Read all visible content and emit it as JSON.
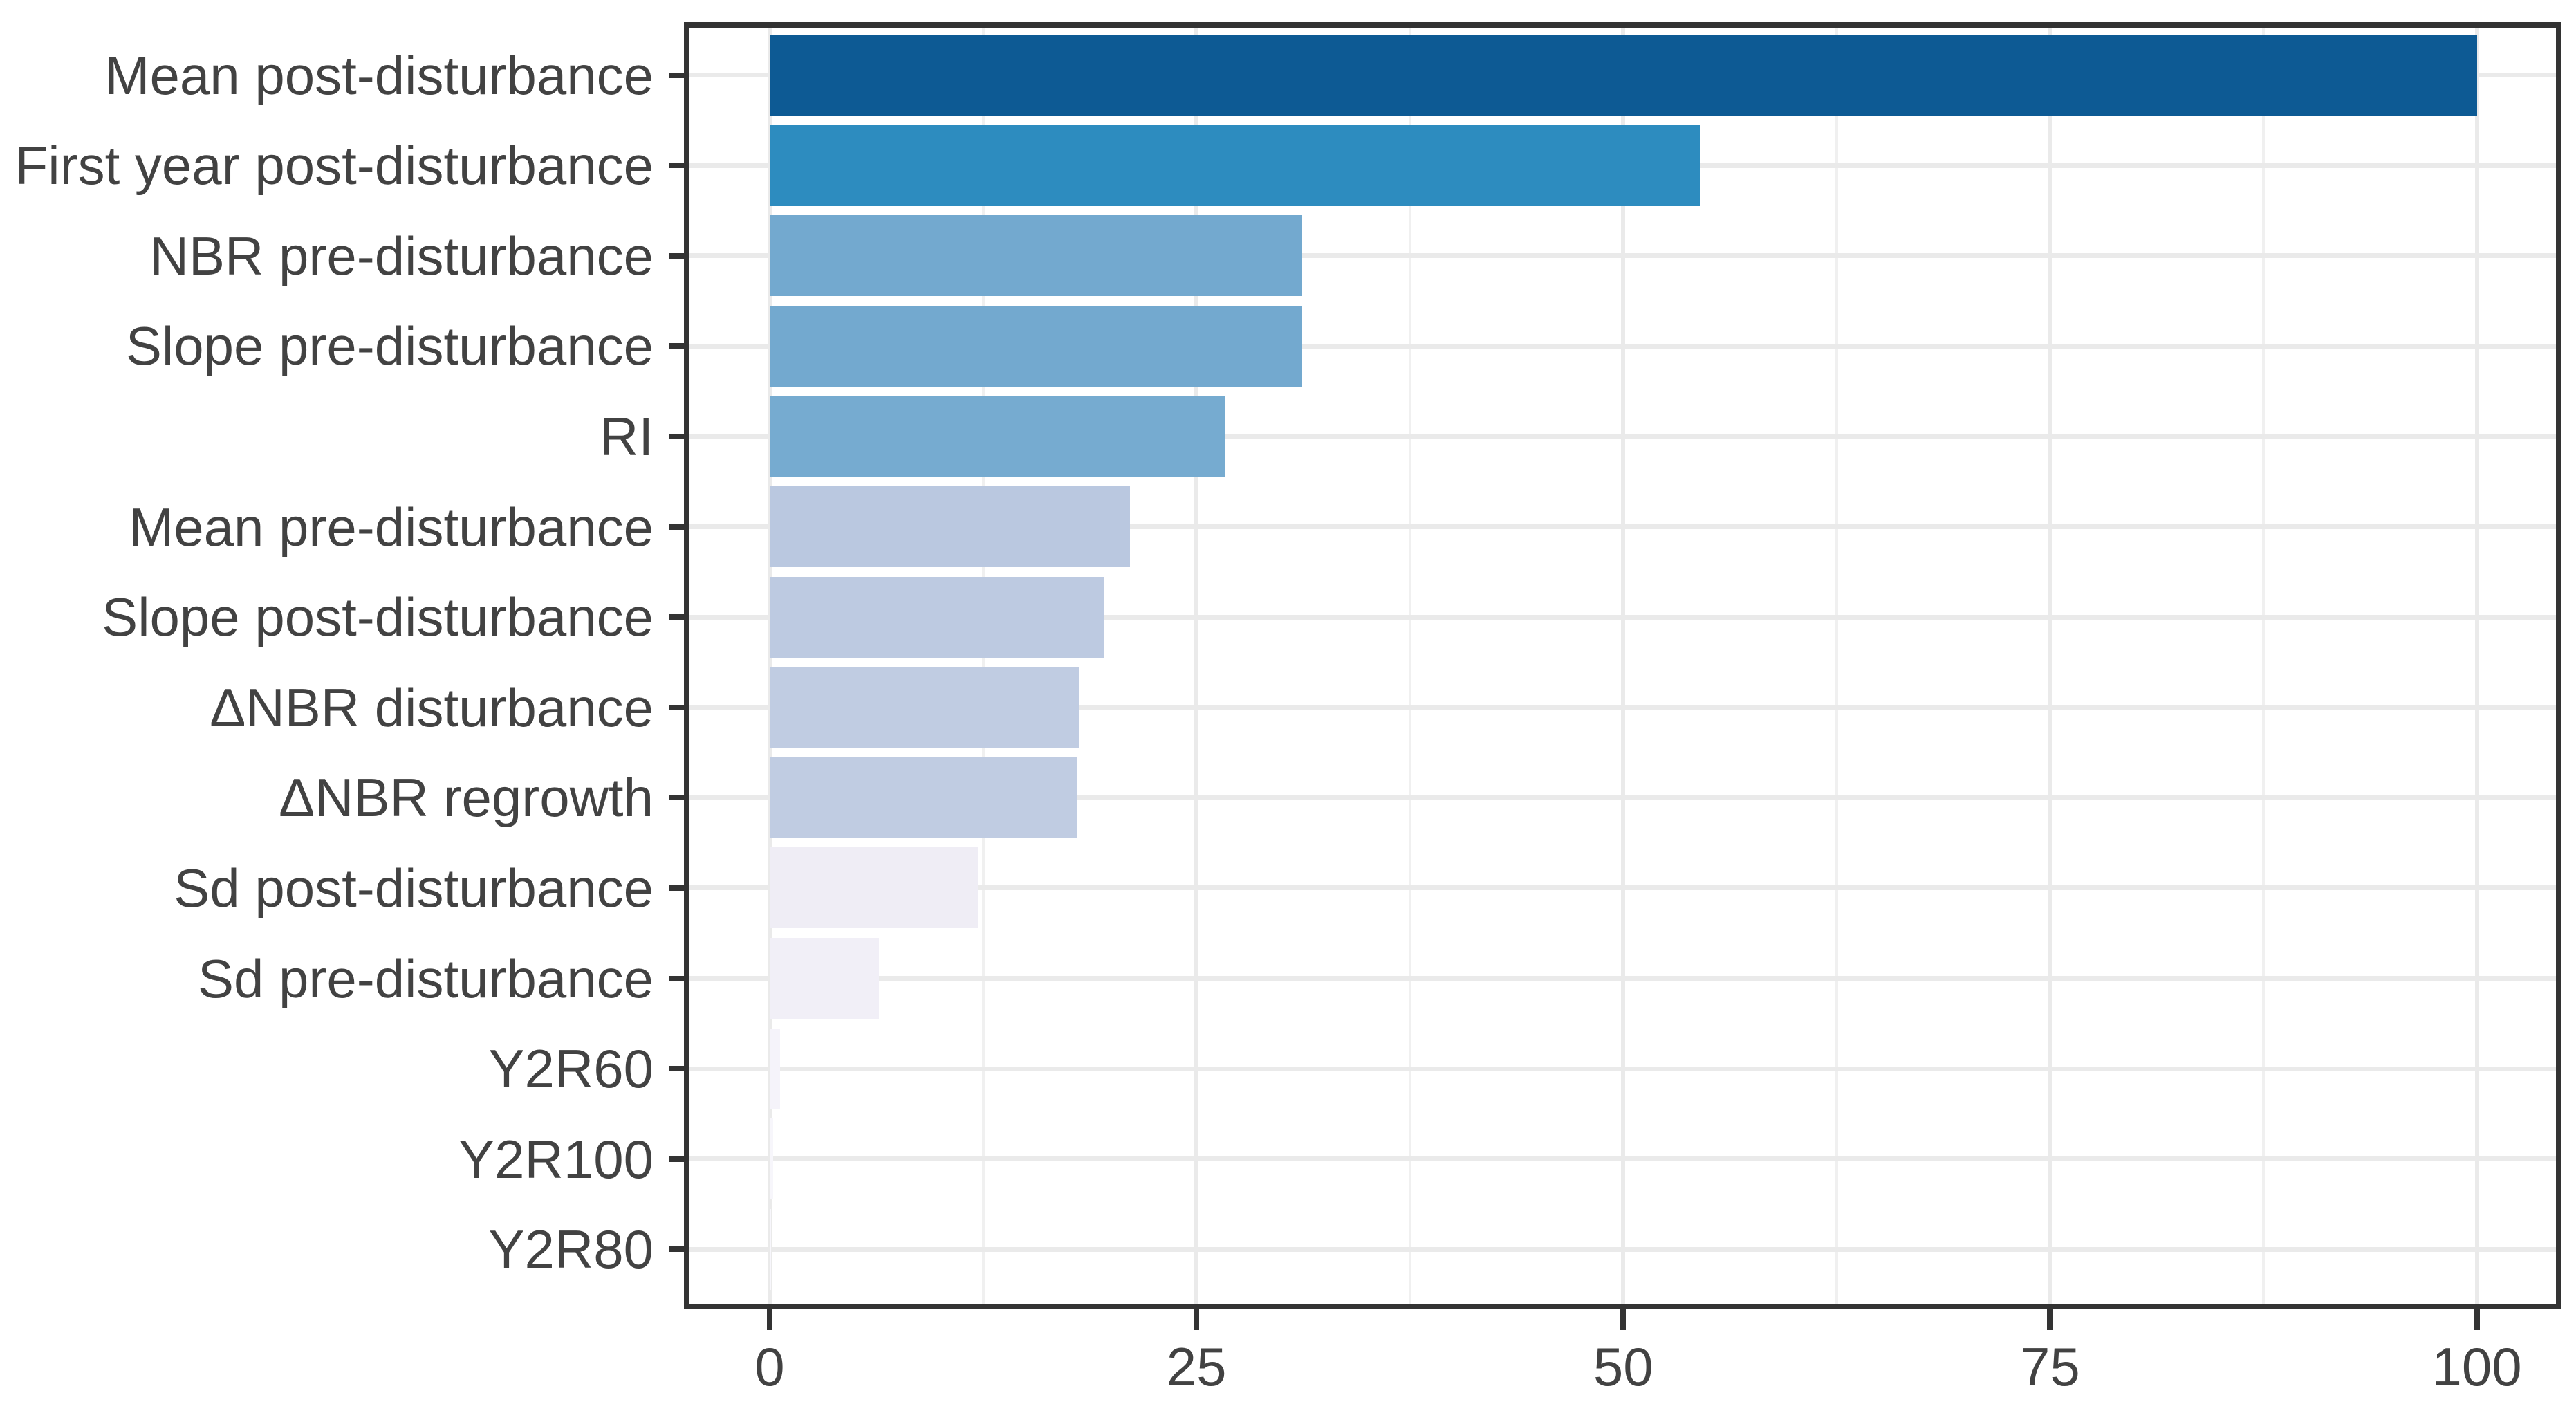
{
  "figure": {
    "background": "#ffffff",
    "panel_border_color": "#333333",
    "grid_major_color": "#eaeaea",
    "grid_minor_color": "#f0f0f0",
    "axis_text_color": "#424242",
    "tick_color": "#333333"
  },
  "chart_data": {
    "type": "bar",
    "orientation": "horizontal",
    "title": "",
    "xlabel": "",
    "ylabel": "",
    "legend": "none",
    "xlim": [
      0,
      100
    ],
    "x_major_ticks": [
      0,
      25,
      50,
      75,
      100
    ],
    "x_tick_labels": [
      "0",
      "25",
      "50",
      "75",
      "100"
    ],
    "x_minor_gridlines": [
      12.5,
      37.5,
      62.5,
      87.5
    ],
    "grid": "horizontal major per category; vertical major and minor",
    "color_scale": {
      "high": "#0d5a94",
      "low": "#f7f6fb",
      "palette": "blues-gradient"
    },
    "categories": [
      "Mean post-disturbance",
      "First year post-disturbance",
      "NBR pre-disturbance",
      "Slope pre-disturbance",
      "RI",
      "Mean pre-disturbance",
      "Slope post-disturbance",
      "ΔNBR disturbance",
      "ΔNBR regrowth",
      "Sd post-disturbance",
      "Sd pre-disturbance",
      "Y2R60",
      "Y2R100",
      "Y2R80"
    ],
    "values": [
      100,
      54.5,
      31.2,
      31.2,
      26.7,
      21.1,
      19.6,
      18.1,
      18.0,
      12.2,
      6.4,
      0.6,
      0.2,
      0.1
    ],
    "rows": [
      {
        "label": "Mean post-disturbance",
        "value": 100,
        "color": "#0d5a94"
      },
      {
        "label": "First year post-disturbance",
        "value": 54.5,
        "color": "#2d8cbf"
      },
      {
        "label": "NBR pre-disturbance",
        "value": 31.2,
        "color": "#73a9cf"
      },
      {
        "label": "Slope pre-disturbance",
        "value": 31.2,
        "color": "#73a9cf"
      },
      {
        "label": "RI",
        "value": 26.7,
        "color": "#76abd0"
      },
      {
        "label": "Mean pre-disturbance",
        "value": 21.1,
        "color": "#bac8e0"
      },
      {
        "label": "Slope post-disturbance",
        "value": 19.6,
        "color": "#bdcae1"
      },
      {
        "label": "ΔNBR disturbance",
        "value": 18.1,
        "color": "#c0cce2"
      },
      {
        "label": "ΔNBR regrowth",
        "value": 18.0,
        "color": "#c0cce2"
      },
      {
        "label": "Sd post-disturbance",
        "value": 12.2,
        "color": "#efedf5"
      },
      {
        "label": "Sd pre-disturbance",
        "value": 6.4,
        "color": "#f1eff7"
      },
      {
        "label": "Y2R60",
        "value": 0.6,
        "color": "#f5f3fa"
      },
      {
        "label": "Y2R100",
        "value": 0.2,
        "color": "#f7f6fb"
      },
      {
        "label": "Y2R80",
        "value": 0.1,
        "color": "#f7f6fb"
      }
    ]
  }
}
